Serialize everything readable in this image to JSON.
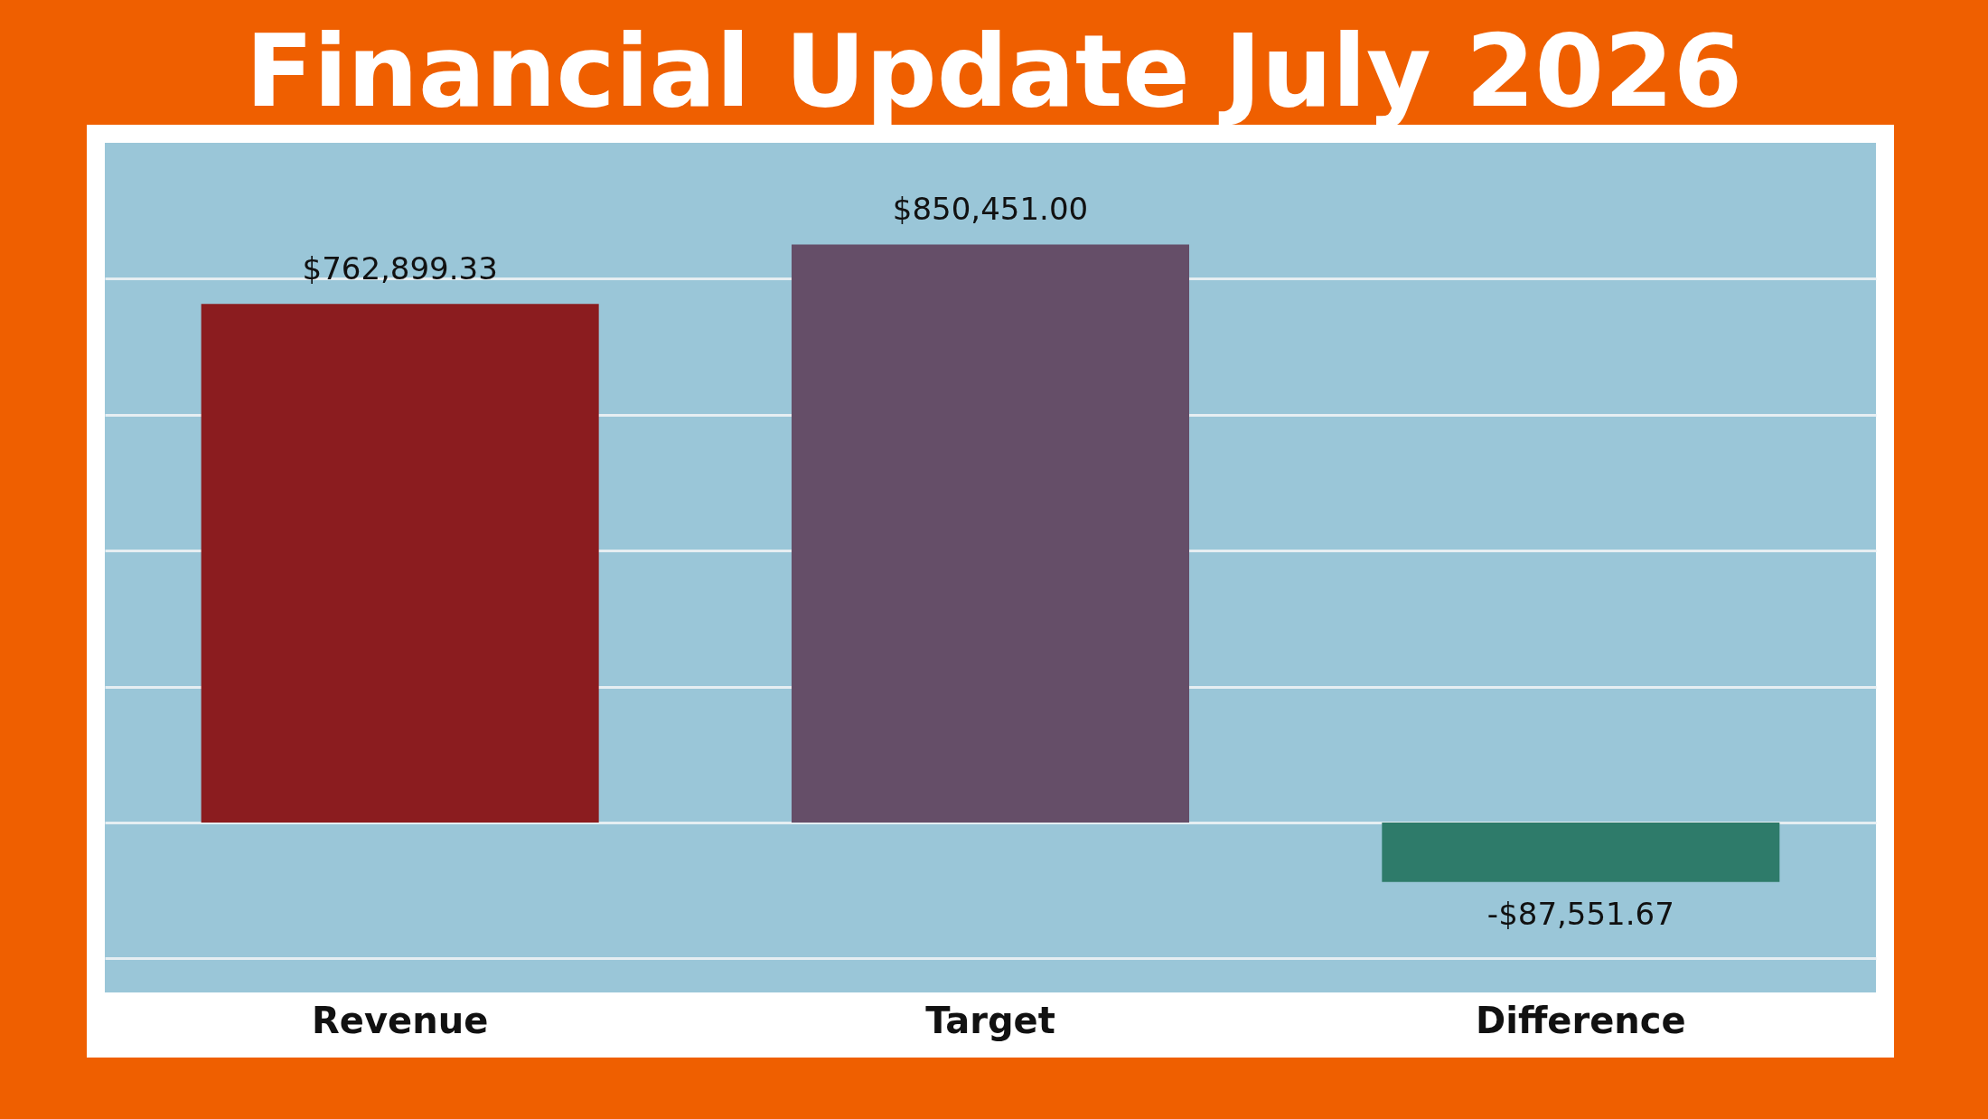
{
  "chart_data": {
    "type": "bar",
    "title": "Financial Update July 2026",
    "categories": [
      "Revenue",
      "Target",
      "Difference"
    ],
    "values": [
      762899.33,
      850451.0,
      -87551.67
    ],
    "colors": [
      "#8b1c1f",
      "#654e68",
      "#2e7b6a"
    ],
    "value_labels": [
      "$762,899.33",
      "$850,451.00",
      "-$87,551.67"
    ],
    "ylim": [
      -250000,
      1000000
    ],
    "yticks": [
      {
        "value": -200000,
        "label": null
      },
      {
        "value": 0,
        "label": null
      },
      {
        "value": 200000,
        "label": null
      },
      {
        "value": 400000,
        "label": null
      },
      {
        "value": 600000,
        "label": null
      },
      {
        "value": 800000,
        "label": null
      }
    ],
    "grid": "y",
    "tick_labels": "x"
  }
}
